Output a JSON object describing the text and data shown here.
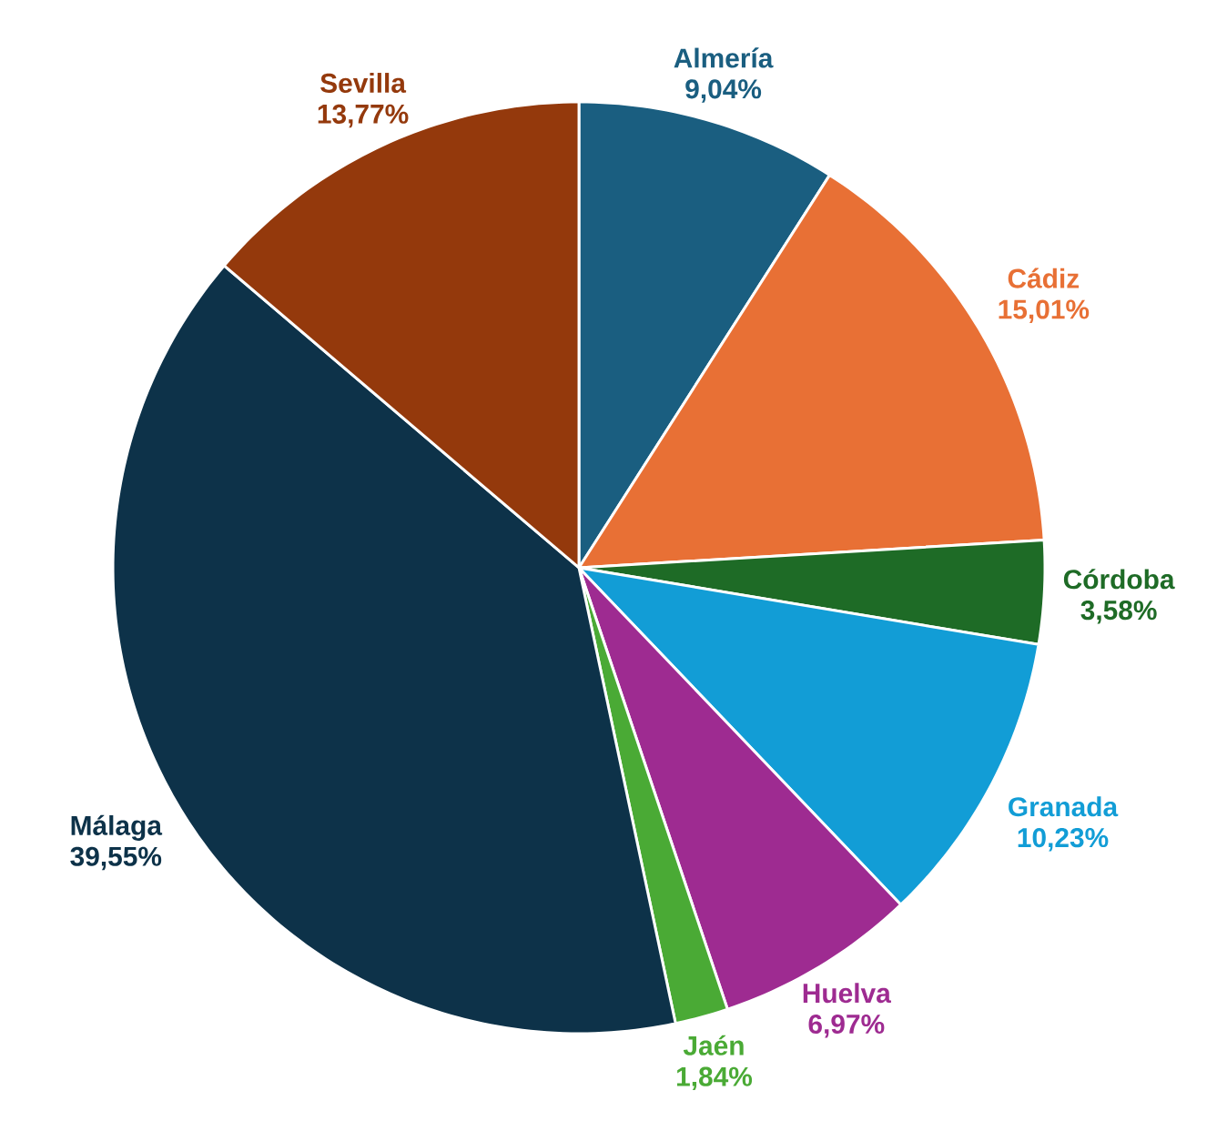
{
  "chart_data": {
    "type": "pie",
    "categories": [
      "Almería",
      "Cádiz",
      "Córdoba",
      "Granada",
      "Huelva",
      "Jaén",
      "Málaga",
      "Sevilla"
    ],
    "values": [
      9.04,
      15.01,
      3.58,
      10.23,
      6.97,
      1.84,
      39.55,
      13.77
    ],
    "value_labels": [
      "9,04%",
      "15,01%",
      "3,58%",
      "10,23%",
      "6,97%",
      "1,84%",
      "39,55%",
      "13,77%"
    ],
    "colors": [
      "#1a5e80",
      "#e87035",
      "#1e6b26",
      "#129dd6",
      "#9e2b91",
      "#4aaa35",
      "#0d3249",
      "#94390c"
    ]
  }
}
